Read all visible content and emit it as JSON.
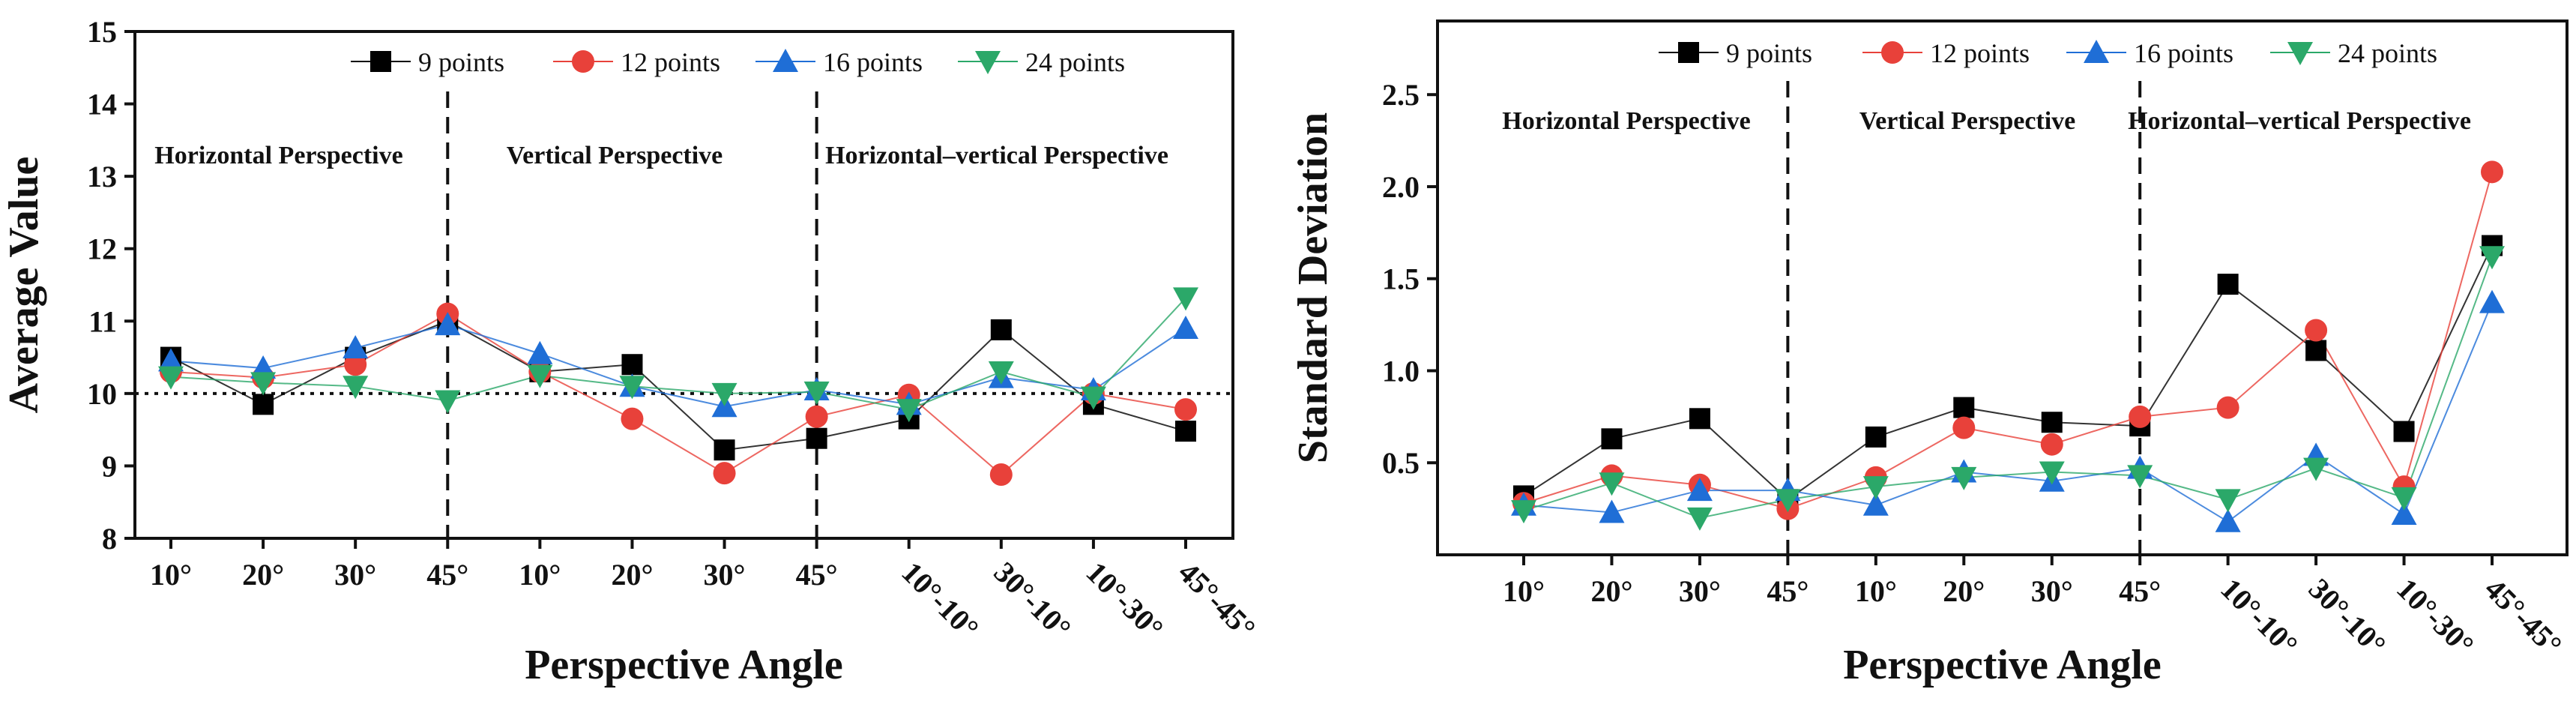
{
  "chart_data": [
    {
      "type": "line",
      "title": "",
      "xlabel": "Perspective Angle",
      "ylabel": "Average Value",
      "ylim": [
        8,
        15
      ],
      "yticks": [
        8,
        9,
        10,
        11,
        12,
        13,
        14,
        15
      ],
      "reference_line": 10,
      "categories": [
        "10°",
        "20°",
        "30°",
        "45°",
        "10°",
        "20°",
        "30°",
        "45°",
        "10°-10°",
        "30°-10°",
        "10°-30°",
        "45°-45°"
      ],
      "regions": [
        {
          "label": "Horizontal Perspective",
          "start": 0,
          "end": 3
        },
        {
          "label": "Vertical Perspective",
          "start": 3,
          "end": 7
        },
        {
          "label": "Horizontal–vertical Perspective",
          "start": 7,
          "end": 11
        }
      ],
      "series": [
        {
          "name": "9 points",
          "color": "#000000",
          "marker": "square",
          "values": [
            10.5,
            9.85,
            10.5,
            11.0,
            10.3,
            10.4,
            9.22,
            9.38,
            9.65,
            10.88,
            9.85,
            9.48
          ]
        },
        {
          "name": "12 points",
          "color": "#e8413a",
          "marker": "circle",
          "values": [
            10.3,
            10.22,
            10.4,
            11.1,
            10.3,
            9.65,
            8.9,
            9.68,
            9.98,
            8.88,
            10.0,
            9.78
          ]
        },
        {
          "name": "16 points",
          "color": "#1f6ed6",
          "marker": "triangle-up",
          "values": [
            10.45,
            10.35,
            10.63,
            10.95,
            10.55,
            10.1,
            9.82,
            10.05,
            9.85,
            10.22,
            10.05,
            10.9
          ]
        },
        {
          "name": "24 points",
          "color": "#2ba869",
          "marker": "triangle-down",
          "values": [
            10.23,
            10.15,
            10.1,
            9.9,
            10.25,
            10.1,
            10.0,
            10.02,
            9.78,
            10.3,
            9.95,
            11.32
          ]
        }
      ]
    },
    {
      "type": "line",
      "title": "",
      "xlabel": "Perspective Angle",
      "ylabel": "Standard Deviation",
      "ylim": [
        0,
        2.9
      ],
      "yticks": [
        0.5,
        1.0,
        1.5,
        2.0,
        2.5
      ],
      "ytick_labels": [
        "0.5",
        "1.0",
        "1.5",
        "2.0",
        "2.5"
      ],
      "categories": [
        "10°",
        "20°",
        "30°",
        "45°",
        "10°",
        "20°",
        "30°",
        "45°",
        "10°-10°",
        "30°-10°",
        "10°-30°",
        "45°-45°"
      ],
      "regions": [
        {
          "label": "Horizontal Perspective",
          "start": 0,
          "end": 3
        },
        {
          "label": "Vertical Perspective",
          "start": 3,
          "end": 7
        },
        {
          "label": "Horizontal–vertical Perspective",
          "start": 7,
          "end": 11
        }
      ],
      "series": [
        {
          "name": "9 points",
          "color": "#000000",
          "marker": "square",
          "values": [
            0.32,
            0.63,
            0.74,
            0.3,
            0.64,
            0.8,
            0.72,
            0.7,
            1.47,
            1.11,
            0.67,
            1.68
          ]
        },
        {
          "name": "12 points",
          "color": "#e8413a",
          "marker": "circle",
          "values": [
            0.28,
            0.43,
            0.38,
            0.25,
            0.42,
            0.69,
            0.6,
            0.75,
            0.8,
            1.22,
            0.37,
            2.08
          ]
        },
        {
          "name": "16 points",
          "color": "#1f6ed6",
          "marker": "triangle-up",
          "values": [
            0.27,
            0.23,
            0.35,
            0.35,
            0.27,
            0.45,
            0.4,
            0.47,
            0.18,
            0.54,
            0.22,
            1.37
          ]
        },
        {
          "name": "24 points",
          "color": "#2ba869",
          "marker": "triangle-down",
          "values": [
            0.24,
            0.39,
            0.2,
            0.3,
            0.37,
            0.42,
            0.45,
            0.43,
            0.3,
            0.47,
            0.31,
            1.62
          ]
        }
      ]
    }
  ]
}
